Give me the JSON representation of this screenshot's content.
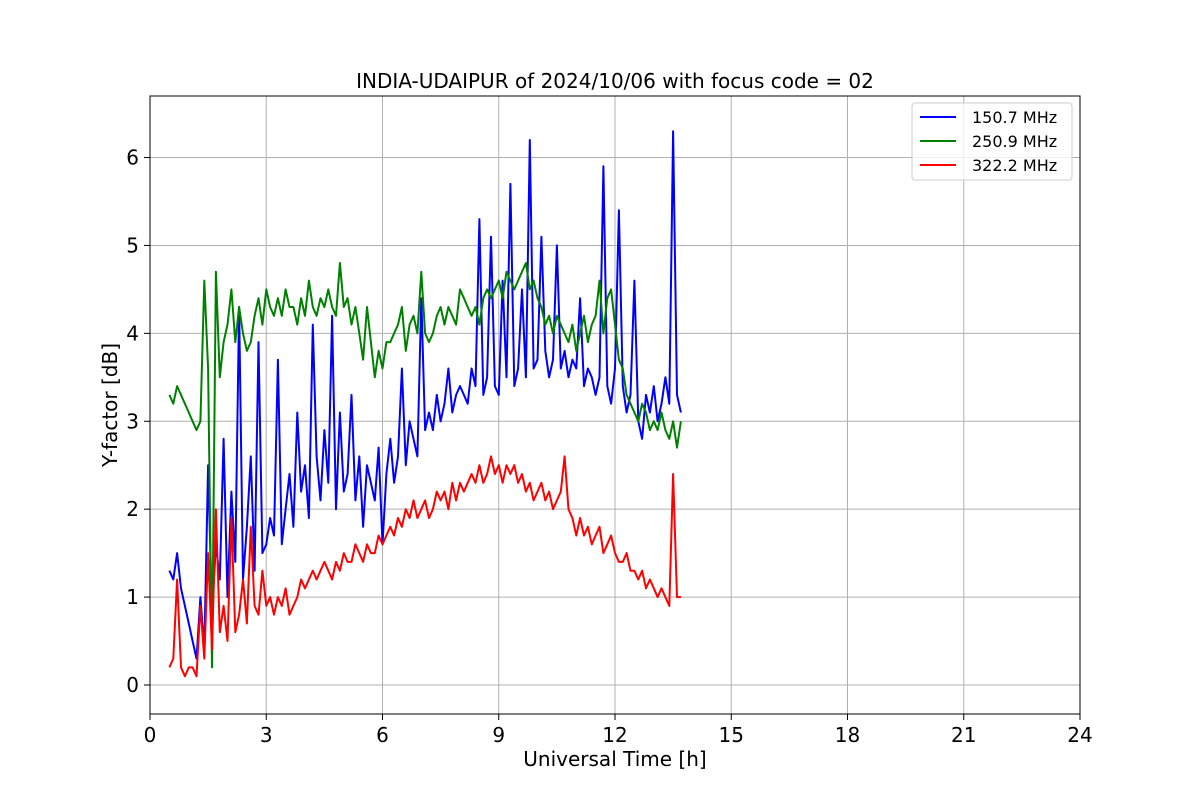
{
  "chart_data": {
    "type": "line",
    "title": "INDIA-UDAIPUR of 2024/10/06 with focus code = 02",
    "xlabel": "Universal Time [h]",
    "ylabel": "Y-factor [dB]",
    "xlim": [
      0,
      24
    ],
    "ylim": [
      -0.33,
      6.7
    ],
    "xticks": [
      0,
      3,
      6,
      9,
      12,
      15,
      18,
      21,
      24
    ],
    "xtick_labels": [
      "0",
      "3",
      "6",
      "9",
      "12",
      "15",
      "18",
      "21",
      "24"
    ],
    "yticks": [
      0,
      1,
      2,
      3,
      4,
      5,
      6
    ],
    "ytick_labels": [
      "0",
      "1",
      "2",
      "3",
      "4",
      "5",
      "6"
    ],
    "grid": true,
    "legend_position": "top-right",
    "series": [
      {
        "name": "150.7 MHz",
        "color": "#0000ff",
        "x": [
          0.5,
          0.6,
          0.7,
          0.8,
          0.9,
          1.0,
          1.1,
          1.2,
          1.3,
          1.4,
          1.5,
          1.6,
          1.7,
          1.8,
          1.9,
          2.0,
          2.1,
          2.2,
          2.3,
          2.4,
          2.5,
          2.6,
          2.7,
          2.8,
          2.9,
          3.0,
          3.1,
          3.2,
          3.3,
          3.4,
          3.5,
          3.6,
          3.7,
          3.8,
          3.9,
          4.0,
          4.1,
          4.2,
          4.3,
          4.4,
          4.5,
          4.6,
          4.7,
          4.8,
          4.9,
          5.0,
          5.1,
          5.2,
          5.3,
          5.4,
          5.5,
          5.6,
          5.7,
          5.8,
          5.9,
          6.0,
          6.1,
          6.2,
          6.3,
          6.4,
          6.5,
          6.6,
          6.7,
          6.8,
          6.9,
          7.0,
          7.1,
          7.2,
          7.3,
          7.4,
          7.5,
          7.6,
          7.7,
          7.8,
          7.9,
          8.0,
          8.1,
          8.2,
          8.3,
          8.4,
          8.5,
          8.6,
          8.7,
          8.8,
          8.9,
          9.0,
          9.1,
          9.2,
          9.3,
          9.4,
          9.5,
          9.6,
          9.7,
          9.8,
          9.9,
          10.0,
          10.1,
          10.2,
          10.3,
          10.4,
          10.5,
          10.6,
          10.7,
          10.8,
          10.9,
          11.0,
          11.1,
          11.2,
          11.3,
          11.4,
          11.5,
          11.6,
          11.7,
          11.8,
          11.9,
          12.0,
          12.1,
          12.2,
          12.3,
          12.4,
          12.5,
          12.6,
          12.7,
          12.8,
          12.9,
          13.0,
          13.1,
          13.2,
          13.3,
          13.4,
          13.5,
          13.6,
          13.7
        ],
        "y": [
          1.3,
          1.2,
          1.5,
          1.1,
          0.9,
          0.7,
          0.5,
          0.3,
          1.0,
          0.4,
          2.5,
          0.8,
          1.6,
          1.2,
          2.8,
          1.0,
          2.2,
          1.4,
          4.3,
          1.2,
          1.8,
          2.6,
          1.3,
          3.9,
          1.5,
          1.6,
          1.9,
          1.7,
          3.7,
          1.6,
          2.0,
          2.4,
          1.8,
          3.1,
          2.2,
          2.5,
          1.9,
          4.1,
          2.6,
          2.1,
          2.9,
          2.3,
          4.2,
          2.0,
          3.1,
          2.2,
          2.4,
          3.3,
          2.1,
          2.6,
          1.8,
          2.5,
          2.3,
          2.1,
          2.7,
          1.6,
          2.4,
          2.8,
          2.3,
          2.6,
          3.6,
          2.5,
          3.0,
          2.8,
          2.6,
          4.4,
          2.9,
          3.1,
          2.9,
          3.3,
          3.0,
          3.2,
          3.6,
          3.1,
          3.3,
          3.4,
          3.3,
          3.2,
          3.6,
          3.4,
          5.3,
          3.3,
          3.5,
          5.1,
          3.4,
          3.3,
          4.6,
          3.5,
          5.7,
          3.4,
          3.6,
          4.5,
          3.5,
          6.2,
          3.6,
          3.7,
          5.1,
          3.8,
          3.5,
          3.7,
          5.0,
          3.6,
          3.8,
          3.5,
          3.7,
          3.6,
          4.4,
          3.4,
          3.6,
          3.5,
          3.3,
          3.5,
          5.9,
          3.4,
          3.2,
          3.6,
          5.4,
          3.4,
          3.1,
          3.3,
          4.6,
          3.0,
          2.8,
          3.3,
          3.1,
          3.4,
          3.0,
          3.2,
          3.5,
          3.2,
          6.3,
          3.3,
          3.1
        ]
      },
      {
        "name": "250.9 MHz",
        "color": "#008000",
        "x": [
          0.5,
          0.6,
          0.7,
          0.8,
          0.9,
          1.0,
          1.1,
          1.2,
          1.3,
          1.4,
          1.5,
          1.6,
          1.7,
          1.8,
          1.9,
          2.0,
          2.1,
          2.2,
          2.3,
          2.4,
          2.5,
          2.6,
          2.7,
          2.8,
          2.9,
          3.0,
          3.1,
          3.2,
          3.3,
          3.4,
          3.5,
          3.6,
          3.7,
          3.8,
          3.9,
          4.0,
          4.1,
          4.2,
          4.3,
          4.4,
          4.5,
          4.6,
          4.7,
          4.8,
          4.9,
          5.0,
          5.1,
          5.2,
          5.3,
          5.4,
          5.5,
          5.6,
          5.7,
          5.8,
          5.9,
          6.0,
          6.1,
          6.2,
          6.3,
          6.4,
          6.5,
          6.6,
          6.7,
          6.8,
          6.9,
          7.0,
          7.1,
          7.2,
          7.3,
          7.4,
          7.5,
          7.6,
          7.7,
          7.8,
          7.9,
          8.0,
          8.1,
          8.2,
          8.3,
          8.4,
          8.5,
          8.6,
          8.7,
          8.8,
          8.9,
          9.0,
          9.1,
          9.2,
          9.3,
          9.4,
          9.5,
          9.6,
          9.7,
          9.8,
          9.9,
          10.0,
          10.1,
          10.2,
          10.3,
          10.4,
          10.5,
          10.6,
          10.7,
          10.8,
          10.9,
          11.0,
          11.1,
          11.2,
          11.3,
          11.4,
          11.5,
          11.6,
          11.7,
          11.8,
          11.9,
          12.0,
          12.1,
          12.2,
          12.3,
          12.4,
          12.5,
          12.6,
          12.7,
          12.8,
          12.9,
          13.0,
          13.1,
          13.2,
          13.3,
          13.4,
          13.5,
          13.6,
          13.7
        ],
        "y": [
          3.3,
          3.2,
          3.4,
          3.3,
          3.2,
          3.1,
          3.0,
          2.9,
          3.0,
          4.6,
          3.6,
          0.2,
          4.7,
          3.5,
          3.9,
          4.1,
          4.5,
          3.9,
          4.3,
          4.0,
          3.8,
          3.9,
          4.2,
          4.4,
          4.1,
          4.5,
          4.3,
          4.2,
          4.4,
          4.2,
          4.5,
          4.3,
          4.3,
          4.1,
          4.4,
          4.2,
          4.6,
          4.3,
          4.2,
          4.4,
          4.3,
          4.5,
          4.3,
          4.2,
          4.8,
          4.3,
          4.4,
          4.1,
          4.3,
          4.0,
          3.7,
          4.3,
          3.9,
          3.5,
          3.8,
          3.6,
          3.9,
          3.9,
          4.0,
          4.1,
          4.3,
          3.8,
          4.1,
          4.2,
          4.0,
          4.7,
          4.0,
          3.9,
          4.0,
          4.2,
          4.3,
          4.1,
          4.3,
          4.2,
          4.1,
          4.5,
          4.4,
          4.3,
          4.2,
          4.3,
          4.1,
          4.4,
          4.5,
          4.4,
          4.5,
          4.6,
          4.4,
          4.7,
          4.6,
          4.5,
          4.6,
          4.7,
          4.8,
          4.5,
          4.6,
          4.4,
          4.3,
          4.1,
          4.2,
          4.0,
          4.2,
          4.1,
          4.0,
          3.9,
          4.1,
          3.8,
          4.0,
          4.2,
          3.9,
          4.1,
          4.2,
          4.6,
          4.0,
          4.4,
          4.5,
          4.1,
          3.7,
          3.6,
          3.3,
          3.2,
          3.1,
          3.0,
          3.2,
          3.1,
          2.9,
          3.0,
          2.9,
          3.1,
          2.9,
          2.8,
          3.0,
          2.7,
          3.0
        ]
      },
      {
        "name": "322.2 MHz",
        "color": "#ff0000",
        "x": [
          0.5,
          0.6,
          0.7,
          0.8,
          0.9,
          1.0,
          1.1,
          1.2,
          1.3,
          1.4,
          1.5,
          1.6,
          1.7,
          1.8,
          1.9,
          2.0,
          2.1,
          2.2,
          2.3,
          2.4,
          2.5,
          2.6,
          2.7,
          2.8,
          2.9,
          3.0,
          3.1,
          3.2,
          3.3,
          3.4,
          3.5,
          3.6,
          3.7,
          3.8,
          3.9,
          4.0,
          4.1,
          4.2,
          4.3,
          4.4,
          4.5,
          4.6,
          4.7,
          4.8,
          4.9,
          5.0,
          5.1,
          5.2,
          5.3,
          5.4,
          5.5,
          5.6,
          5.7,
          5.8,
          5.9,
          6.0,
          6.1,
          6.2,
          6.3,
          6.4,
          6.5,
          6.6,
          6.7,
          6.8,
          6.9,
          7.0,
          7.1,
          7.2,
          7.3,
          7.4,
          7.5,
          7.6,
          7.7,
          7.8,
          7.9,
          8.0,
          8.1,
          8.2,
          8.3,
          8.4,
          8.5,
          8.6,
          8.7,
          8.8,
          8.9,
          9.0,
          9.1,
          9.2,
          9.3,
          9.4,
          9.5,
          9.6,
          9.7,
          9.8,
          9.9,
          10.0,
          10.1,
          10.2,
          10.3,
          10.4,
          10.5,
          10.6,
          10.7,
          10.8,
          10.9,
          11.0,
          11.1,
          11.2,
          11.3,
          11.4,
          11.5,
          11.6,
          11.7,
          11.8,
          11.9,
          12.0,
          12.1,
          12.2,
          12.3,
          12.4,
          12.5,
          12.6,
          12.7,
          12.8,
          12.9,
          13.0,
          13.1,
          13.2,
          13.3,
          13.4,
          13.5,
          13.6,
          13.7
        ],
        "y": [
          0.2,
          0.3,
          1.2,
          0.2,
          0.1,
          0.2,
          0.2,
          0.1,
          0.9,
          0.3,
          1.5,
          0.4,
          2.0,
          0.6,
          0.9,
          0.5,
          1.9,
          0.6,
          0.8,
          1.2,
          0.7,
          1.8,
          0.9,
          0.8,
          1.3,
          0.9,
          1.0,
          0.8,
          1.0,
          0.9,
          1.1,
          0.8,
          0.9,
          1.0,
          1.2,
          1.1,
          1.2,
          1.3,
          1.2,
          1.3,
          1.4,
          1.3,
          1.2,
          1.4,
          1.3,
          1.5,
          1.4,
          1.4,
          1.6,
          1.5,
          1.4,
          1.6,
          1.5,
          1.5,
          1.7,
          1.6,
          1.7,
          1.8,
          1.7,
          1.9,
          1.8,
          2.0,
          1.9,
          2.1,
          1.9,
          2.0,
          2.1,
          1.9,
          2.0,
          2.2,
          2.1,
          2.2,
          2.0,
          2.3,
          2.1,
          2.3,
          2.2,
          2.3,
          2.4,
          2.3,
          2.5,
          2.3,
          2.4,
          2.6,
          2.4,
          2.5,
          2.3,
          2.5,
          2.4,
          2.5,
          2.3,
          2.4,
          2.2,
          2.3,
          2.1,
          2.2,
          2.3,
          2.1,
          2.2,
          2.0,
          2.1,
          2.2,
          2.6,
          2.0,
          1.9,
          1.7,
          1.9,
          1.7,
          1.8,
          1.6,
          1.7,
          1.8,
          1.5,
          1.6,
          1.7,
          1.5,
          1.4,
          1.4,
          1.5,
          1.3,
          1.3,
          1.2,
          1.3,
          1.1,
          1.2,
          1.1,
          1.0,
          1.1,
          1.0,
          0.9,
          2.4,
          1.0,
          1.0
        ]
      }
    ]
  }
}
